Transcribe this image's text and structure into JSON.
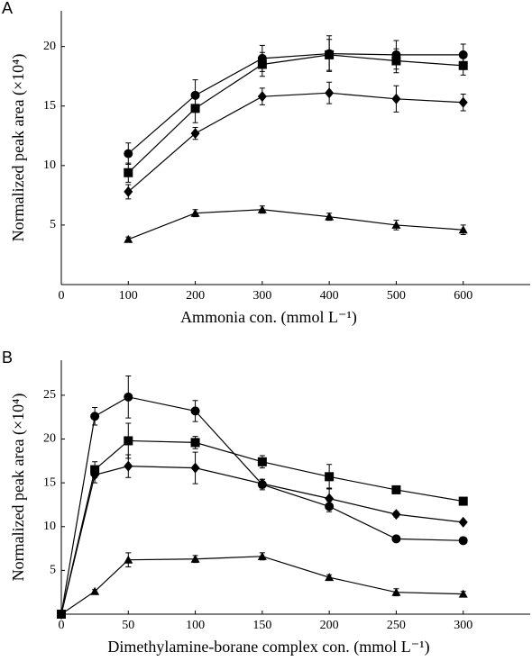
{
  "chart_data": [
    {
      "type": "line",
      "label": "A",
      "x_label": "Ammonia con. (mmol L⁻¹)",
      "y_label": "Normalized peak area (×10⁴)",
      "x": [
        100,
        200,
        300,
        400,
        500,
        600
      ],
      "xlim": [
        0,
        700
      ],
      "xticks": [
        0,
        100,
        200,
        300,
        400,
        500,
        600
      ],
      "ylim": [
        0,
        23
      ],
      "yticks": [
        5,
        10,
        15,
        20
      ],
      "grid": false,
      "series": [
        {
          "marker": "circle",
          "color": "#000000",
          "values": [
            11.0,
            15.9,
            19.0,
            19.4,
            19.3,
            19.3
          ],
          "errors": [
            0.9,
            1.3,
            1.1,
            1.5,
            1.2,
            0.9
          ]
        },
        {
          "marker": "square",
          "color": "#000000",
          "values": [
            9.4,
            14.8,
            18.5,
            19.3,
            18.8,
            18.4
          ],
          "errors": [
            0.8,
            1.2,
            1.0,
            1.3,
            1.0,
            0.8
          ]
        },
        {
          "marker": "diamond",
          "color": "#000000",
          "values": [
            7.8,
            12.7,
            15.8,
            16.1,
            15.6,
            15.3
          ],
          "errors": [
            0.6,
            0.5,
            0.7,
            0.9,
            1.1,
            0.7
          ]
        },
        {
          "marker": "triangle",
          "color": "#000000",
          "values": [
            3.8,
            6.0,
            6.3,
            5.7,
            5.0,
            4.6
          ],
          "errors": [
            0.2,
            0.3,
            0.3,
            0.3,
            0.4,
            0.4
          ]
        }
      ]
    },
    {
      "type": "line",
      "label": "B",
      "x_label": "Dimethylamine-borane complex con. (mmol L⁻¹)",
      "y_label": "Normalized peak area (×10⁴)",
      "x": [
        0,
        25,
        50,
        100,
        150,
        200,
        250,
        300
      ],
      "xlim": [
        0,
        350
      ],
      "xticks": [
        0,
        50,
        100,
        150,
        200,
        250,
        300
      ],
      "ylim": [
        0,
        29
      ],
      "yticks": [
        5,
        10,
        15,
        20,
        25
      ],
      "grid": false,
      "series": [
        {
          "marker": "circle",
          "color": "#000000",
          "values": [
            0,
            22.6,
            24.8,
            23.2,
            14.8,
            12.3,
            8.6,
            8.4
          ],
          "errors": [
            0,
            1.0,
            2.4,
            1.2,
            0.6,
            0.6,
            0.3,
            0.2
          ]
        },
        {
          "marker": "square",
          "color": "#000000",
          "values": [
            0,
            16.5,
            19.8,
            19.6,
            17.4,
            15.7,
            14.2,
            12.9
          ],
          "errors": [
            0,
            0.9,
            2.0,
            0.7,
            0.7,
            1.4,
            0.3,
            0.4
          ]
        },
        {
          "marker": "diamond",
          "color": "#000000",
          "values": [
            0,
            15.9,
            16.9,
            16.7,
            14.9,
            13.2,
            11.4,
            10.5
          ],
          "errors": [
            0,
            0.9,
            1.3,
            1.8,
            0.5,
            1.2,
            0.3,
            0.2
          ]
        },
        {
          "marker": "triangle",
          "color": "#000000",
          "values": [
            0,
            2.6,
            6.2,
            6.3,
            6.6,
            4.2,
            2.5,
            2.3
          ],
          "errors": [
            0,
            0.2,
            0.8,
            0.4,
            0.4,
            0.3,
            0.4,
            0.3
          ]
        }
      ]
    }
  ]
}
